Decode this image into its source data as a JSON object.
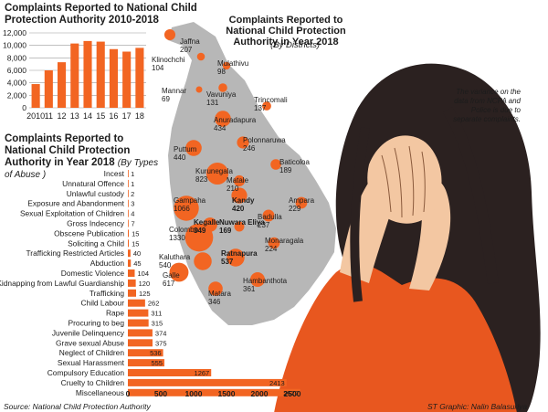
{
  "colors": {
    "accent": "#f26522",
    "text": "#1c1c1c",
    "land": "#b7b7b7",
    "shirt": "#e8571f",
    "hair": "#2b2120",
    "skin": "#f3c7a2"
  },
  "yearly_chart": {
    "title": "Complaints Reported to National Child Protection Authority 2010-2018"
  },
  "abuse_chart": {
    "title": "Complaints Reported to National Child Protection Authority in Year 2018",
    "subtitle": "(By Types of Abuse )"
  },
  "map": {
    "title": "Complaints Reported to National Child Protection Authority in Year 2018",
    "subtitle": "(By Districts)"
  },
  "note": "The variance on the data from NCPA and Police is due to separate complaints.",
  "footer": {
    "source": "Source: National Child Protection Authority",
    "credit": "ST Graphic: Nalin Balasuriya"
  },
  "chart_data": [
    {
      "type": "bar",
      "title": "Complaints Reported to National Child Protection Authority 2010-2018",
      "categories": [
        "2010",
        "11",
        "12",
        "13",
        "14",
        "15",
        "16",
        "17",
        "18"
      ],
      "values": [
        3800,
        6000,
        7300,
        10300,
        10700,
        10600,
        9400,
        9000,
        9600
      ],
      "ylim": [
        0,
        12000
      ],
      "yticks": [
        "0",
        "2,000",
        "4,000",
        "6,000",
        "8,000",
        "10,000",
        "12,000"
      ],
      "grid": true
    },
    {
      "type": "bar",
      "orientation": "horizontal",
      "title": "Complaints Reported to National Child Protection Authority in Year 2018",
      "subtitle": "(By Types of Abuse )",
      "categories": [
        "Incest",
        "Unnatural Offence",
        "Unlawful custody",
        "Exposure and Abandonment",
        "Sexual Exploitation of Children",
        "Gross Indecency",
        "Obscene Publication",
        "Soliciting a Child",
        "Trafficking Restricted Articles",
        "Abduction",
        "Domestic Violence",
        "Kidnapping from Lawful Guardianship",
        "Trafficking",
        "Child Labour",
        "Rape",
        "Procuring to beg",
        "Juvenile Delinquency",
        "Grave sexual Abuse",
        "Neglect of Children",
        "Sexual Harassment",
        "Compulsory Education",
        "Cruelty to Children",
        "Miscellaneous"
      ],
      "values": [
        1,
        1,
        2,
        3,
        4,
        7,
        15,
        15,
        40,
        45,
        104,
        120,
        125,
        262,
        311,
        315,
        374,
        375,
        536,
        555,
        1267,
        2413,
        2622
      ],
      "labels": [
        "1",
        "1",
        "2",
        "3",
        "4",
        "7",
        "15",
        "15",
        "40",
        "45",
        "104",
        "120",
        "125",
        "262",
        "311",
        "315",
        "374",
        "375",
        "536",
        "555",
        "1267",
        "2413",
        "2622"
      ],
      "xlim": [
        0,
        2500
      ],
      "xticks": [
        "0",
        "500",
        "1000",
        "1500",
        "2000",
        "2500"
      ]
    },
    {
      "type": "map",
      "title": "Complaints Reported to National Child Protection Authority in Year 2018",
      "subtitle": "(By Districts)",
      "districts": [
        {
          "name": "Jaffna",
          "value": "207",
          "bold": false
        },
        {
          "name": "Klinochchi",
          "value": "104",
          "bold": false
        },
        {
          "name": "Mulathivu",
          "value": "98",
          "bold": false
        },
        {
          "name": "Mannar",
          "value": "69",
          "bold": false
        },
        {
          "name": "Vavuniya",
          "value": "131",
          "bold": false
        },
        {
          "name": "Trincomali",
          "value": "137",
          "bold": false
        },
        {
          "name": "Anuradapura",
          "value": "434",
          "bold": false
        },
        {
          "name": "Puttum",
          "value": "440",
          "bold": false
        },
        {
          "name": "Polonnaruwa",
          "value": "246",
          "bold": false
        },
        {
          "name": "Baticoloa",
          "value": "189",
          "bold": false
        },
        {
          "name": "Kurunegala",
          "value": "823",
          "bold": false
        },
        {
          "name": "Matale",
          "value": "210",
          "bold": false
        },
        {
          "name": "Kandy",
          "value": "420",
          "bold": true
        },
        {
          "name": "Ampara",
          "value": "229",
          "bold": false
        },
        {
          "name": "Gampaha",
          "value": "1066",
          "bold": false
        },
        {
          "name": "Colombo",
          "value": "1330",
          "bold": false
        },
        {
          "name": "Kegalle",
          "value": "349",
          "bold": true
        },
        {
          "name": "Nuwara Eliya",
          "value": "169",
          "bold": true
        },
        {
          "name": "Badulla",
          "value": "237",
          "bold": false
        },
        {
          "name": "Monaragala",
          "value": "224",
          "bold": false
        },
        {
          "name": "Ratnapura",
          "value": "537",
          "bold": true
        },
        {
          "name": "Kaluthara",
          "value": "540",
          "bold": false
        },
        {
          "name": "Galle",
          "value": "617",
          "bold": false
        },
        {
          "name": "Matara",
          "value": "346",
          "bold": false
        },
        {
          "name": "Hambanthota",
          "value": "361",
          "bold": false
        }
      ]
    }
  ]
}
